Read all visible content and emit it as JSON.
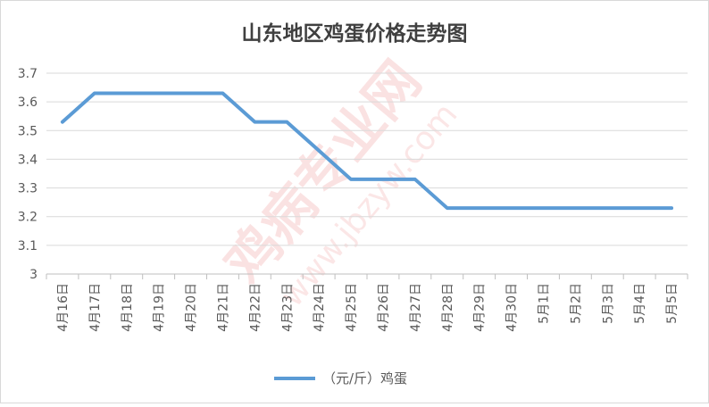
{
  "chart_data": {
    "type": "line",
    "title": "山东地区鸡蛋价格走势图",
    "categories": [
      "4月16日",
      "4月17日",
      "4月18日",
      "4月19日",
      "4月20日",
      "4月21日",
      "4月22日",
      "4月23日",
      "4月24日",
      "4月25日",
      "4月26日",
      "4月27日",
      "4月28日",
      "4月29日",
      "4月30日",
      "5月1日",
      "5月2日",
      "5月3日",
      "5月4日",
      "5月5日"
    ],
    "series": [
      {
        "name": "（元/斤）鸡蛋",
        "values": [
          3.53,
          3.63,
          3.63,
          3.63,
          3.63,
          3.63,
          3.53,
          3.53,
          3.43,
          3.33,
          3.33,
          3.33,
          3.23,
          3.23,
          3.23,
          3.23,
          3.23,
          3.23,
          3.23,
          3.23
        ],
        "color": "#5b9bd5"
      }
    ],
    "ylim": [
      3,
      3.7
    ],
    "yticks": [
      "3",
      "3.1",
      "3.2",
      "3.3",
      "3.4",
      "3.5",
      "3.6",
      "3.7"
    ],
    "grid": true,
    "legend": "bottom"
  },
  "watermark": {
    "main": "鸡病专业网",
    "url": "www.jbzyw.com"
  }
}
